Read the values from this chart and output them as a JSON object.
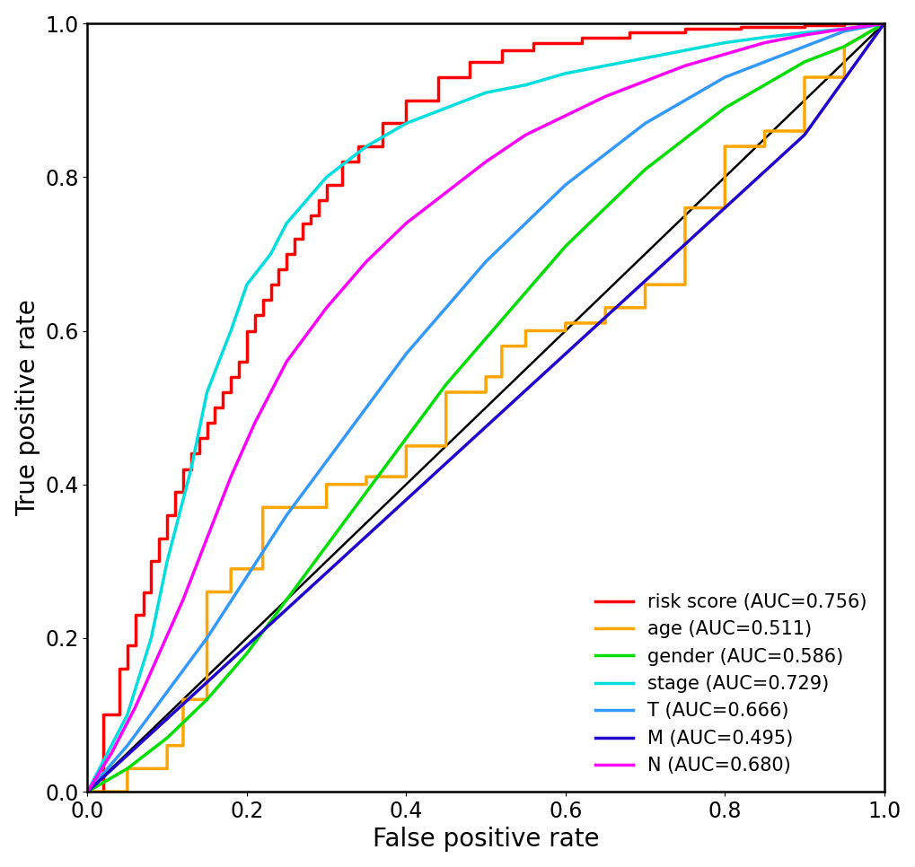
{
  "xlabel": "False positive rate",
  "ylabel": "True positive rate",
  "xlim": [
    0.0,
    1.0
  ],
  "ylim": [
    0.0,
    1.0
  ],
  "xticks": [
    0.0,
    0.2,
    0.4,
    0.6,
    0.8,
    1.0
  ],
  "yticks": [
    0.0,
    0.2,
    0.4,
    0.6,
    0.8,
    1.0
  ],
  "background_color": "#ffffff",
  "diagonal_color": "#000000",
  "diagonal_linewidth": 1.8,
  "legend_loc": "lower right",
  "legend_fontsize": 15,
  "axis_fontsize": 20,
  "tick_fontsize": 17,
  "linewidth": 2.5,
  "curves": [
    {
      "name": "risk score (AUC=0.756)",
      "color": "#ff0000",
      "type": "step",
      "fpr": [
        0.0,
        0.02,
        0.02,
        0.04,
        0.04,
        0.05,
        0.05,
        0.06,
        0.06,
        0.07,
        0.07,
        0.08,
        0.08,
        0.09,
        0.09,
        0.1,
        0.1,
        0.11,
        0.11,
        0.12,
        0.12,
        0.13,
        0.13,
        0.14,
        0.14,
        0.15,
        0.15,
        0.16,
        0.16,
        0.17,
        0.17,
        0.18,
        0.18,
        0.19,
        0.19,
        0.2,
        0.2,
        0.21,
        0.21,
        0.22,
        0.22,
        0.23,
        0.23,
        0.24,
        0.24,
        0.25,
        0.25,
        0.26,
        0.26,
        0.27,
        0.27,
        0.28,
        0.28,
        0.29,
        0.29,
        0.3,
        0.3,
        0.32,
        0.32,
        0.34,
        0.34,
        0.37,
        0.37,
        0.4,
        0.4,
        0.44,
        0.44,
        0.48,
        0.48,
        0.52,
        0.52,
        0.56,
        0.56,
        0.62,
        0.62,
        0.68,
        0.68,
        0.75,
        0.75,
        0.82,
        0.82,
        0.9,
        0.9,
        0.95,
        0.95,
        1.0,
        1.0
      ],
      "tpr": [
        0.0,
        0.0,
        0.1,
        0.1,
        0.16,
        0.16,
        0.19,
        0.19,
        0.23,
        0.23,
        0.26,
        0.26,
        0.3,
        0.3,
        0.33,
        0.33,
        0.36,
        0.36,
        0.39,
        0.39,
        0.42,
        0.42,
        0.44,
        0.44,
        0.46,
        0.46,
        0.48,
        0.48,
        0.5,
        0.5,
        0.52,
        0.52,
        0.54,
        0.54,
        0.56,
        0.56,
        0.6,
        0.6,
        0.62,
        0.62,
        0.64,
        0.64,
        0.66,
        0.66,
        0.68,
        0.68,
        0.7,
        0.7,
        0.72,
        0.72,
        0.74,
        0.74,
        0.75,
        0.75,
        0.77,
        0.77,
        0.79,
        0.79,
        0.82,
        0.82,
        0.84,
        0.84,
        0.87,
        0.87,
        0.9,
        0.9,
        0.93,
        0.93,
        0.95,
        0.95,
        0.965,
        0.965,
        0.975,
        0.975,
        0.982,
        0.982,
        0.989,
        0.989,
        0.993,
        0.993,
        0.996,
        0.996,
        0.998,
        0.998,
        1.0,
        1.0,
        1.0
      ]
    },
    {
      "name": "age (AUC=0.511)",
      "color": "#ffa500",
      "type": "step",
      "fpr": [
        0.0,
        0.0,
        0.05,
        0.05,
        0.1,
        0.1,
        0.12,
        0.12,
        0.15,
        0.15,
        0.18,
        0.18,
        0.22,
        0.22,
        0.3,
        0.3,
        0.35,
        0.35,
        0.4,
        0.4,
        0.45,
        0.45,
        0.5,
        0.5,
        0.52,
        0.52,
        0.55,
        0.55,
        0.6,
        0.6,
        0.65,
        0.65,
        0.7,
        0.7,
        0.75,
        0.75,
        0.8,
        0.8,
        0.85,
        0.85,
        0.9,
        0.9,
        0.95,
        0.95,
        1.0
      ],
      "tpr": [
        0.0,
        0.0,
        0.0,
        0.03,
        0.03,
        0.06,
        0.06,
        0.12,
        0.12,
        0.26,
        0.26,
        0.29,
        0.29,
        0.37,
        0.37,
        0.4,
        0.4,
        0.41,
        0.41,
        0.45,
        0.45,
        0.52,
        0.52,
        0.54,
        0.54,
        0.58,
        0.58,
        0.6,
        0.6,
        0.61,
        0.61,
        0.63,
        0.63,
        0.66,
        0.66,
        0.76,
        0.76,
        0.84,
        0.84,
        0.86,
        0.86,
        0.93,
        0.93,
        0.97,
        1.0
      ]
    },
    {
      "name": "gender (AUC=0.586)",
      "color": "#00dd00",
      "type": "smooth",
      "fpr": [
        0.0,
        0.05,
        0.1,
        0.15,
        0.2,
        0.25,
        0.3,
        0.35,
        0.4,
        0.45,
        0.5,
        0.55,
        0.6,
        0.65,
        0.7,
        0.75,
        0.8,
        0.85,
        0.9,
        0.95,
        1.0
      ],
      "tpr": [
        0.0,
        0.03,
        0.07,
        0.12,
        0.18,
        0.25,
        0.32,
        0.39,
        0.46,
        0.53,
        0.59,
        0.65,
        0.71,
        0.76,
        0.81,
        0.85,
        0.89,
        0.92,
        0.95,
        0.97,
        1.0
      ]
    },
    {
      "name": "stage (AUC=0.729)",
      "color": "#00dddd",
      "type": "smooth",
      "fpr": [
        0.0,
        0.02,
        0.05,
        0.08,
        0.1,
        0.13,
        0.15,
        0.18,
        0.2,
        0.23,
        0.25,
        0.3,
        0.35,
        0.4,
        0.45,
        0.5,
        0.55,
        0.6,
        0.65,
        0.7,
        0.75,
        0.8,
        0.85,
        0.9,
        0.95,
        1.0
      ],
      "tpr": [
        0.0,
        0.04,
        0.1,
        0.2,
        0.3,
        0.42,
        0.52,
        0.6,
        0.66,
        0.7,
        0.74,
        0.8,
        0.84,
        0.87,
        0.89,
        0.91,
        0.92,
        0.935,
        0.945,
        0.955,
        0.965,
        0.975,
        0.982,
        0.988,
        0.993,
        1.0
      ]
    },
    {
      "name": "T (AUC=0.666)",
      "color": "#3399ff",
      "type": "smooth",
      "fpr": [
        0.0,
        0.05,
        0.1,
        0.15,
        0.2,
        0.25,
        0.3,
        0.35,
        0.4,
        0.45,
        0.5,
        0.55,
        0.6,
        0.65,
        0.7,
        0.75,
        0.8,
        0.85,
        0.9,
        0.95,
        1.0
      ],
      "tpr": [
        0.0,
        0.06,
        0.13,
        0.2,
        0.28,
        0.36,
        0.43,
        0.5,
        0.57,
        0.63,
        0.69,
        0.74,
        0.79,
        0.83,
        0.87,
        0.9,
        0.93,
        0.95,
        0.97,
        0.99,
        1.0
      ]
    },
    {
      "name": "M (AUC=0.495)",
      "color": "#2200cc",
      "type": "smooth",
      "fpr": [
        0.0,
        0.1,
        0.2,
        0.3,
        0.4,
        0.5,
        0.6,
        0.7,
        0.8,
        0.9,
        1.0
      ],
      "tpr": [
        0.0,
        0.095,
        0.19,
        0.285,
        0.38,
        0.475,
        0.57,
        0.665,
        0.76,
        0.855,
        1.0
      ]
    },
    {
      "name": "N (AUC=0.680)",
      "color": "#ff00ff",
      "type": "smooth",
      "fpr": [
        0.0,
        0.03,
        0.06,
        0.09,
        0.12,
        0.15,
        0.18,
        0.21,
        0.25,
        0.3,
        0.35,
        0.4,
        0.45,
        0.5,
        0.55,
        0.6,
        0.65,
        0.7,
        0.75,
        0.8,
        0.85,
        0.9,
        0.95,
        1.0
      ],
      "tpr": [
        0.0,
        0.05,
        0.11,
        0.18,
        0.25,
        0.33,
        0.41,
        0.48,
        0.56,
        0.63,
        0.69,
        0.74,
        0.78,
        0.82,
        0.855,
        0.88,
        0.905,
        0.925,
        0.945,
        0.96,
        0.975,
        0.985,
        0.993,
        1.0
      ]
    }
  ]
}
